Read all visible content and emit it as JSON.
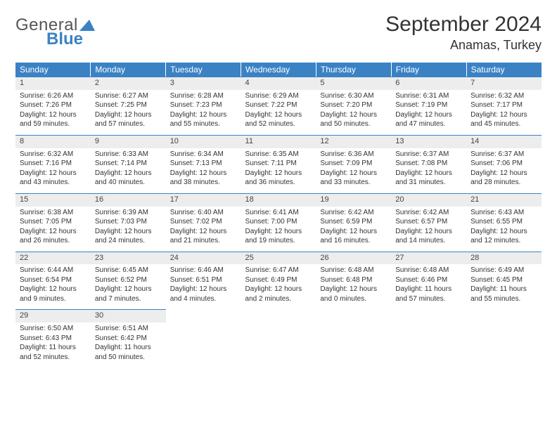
{
  "logo": {
    "line1": "General",
    "line2": "Blue",
    "triangle_color": "#3b82c4"
  },
  "title": "September 2024",
  "location": "Anamas, Turkey",
  "colors": {
    "header_bg": "#3b82c4",
    "header_fg": "#ffffff",
    "daynum_bg": "#ededed",
    "day_border": "#3b82c4",
    "text": "#333333",
    "page_bg": "#ffffff"
  },
  "weekdays": [
    "Sunday",
    "Monday",
    "Tuesday",
    "Wednesday",
    "Thursday",
    "Friday",
    "Saturday"
  ],
  "weeks": [
    [
      {
        "n": "1",
        "sunrise": "6:26 AM",
        "sunset": "7:26 PM",
        "dl": "12 hours and 59 minutes."
      },
      {
        "n": "2",
        "sunrise": "6:27 AM",
        "sunset": "7:25 PM",
        "dl": "12 hours and 57 minutes."
      },
      {
        "n": "3",
        "sunrise": "6:28 AM",
        "sunset": "7:23 PM",
        "dl": "12 hours and 55 minutes."
      },
      {
        "n": "4",
        "sunrise": "6:29 AM",
        "sunset": "7:22 PM",
        "dl": "12 hours and 52 minutes."
      },
      {
        "n": "5",
        "sunrise": "6:30 AM",
        "sunset": "7:20 PM",
        "dl": "12 hours and 50 minutes."
      },
      {
        "n": "6",
        "sunrise": "6:31 AM",
        "sunset": "7:19 PM",
        "dl": "12 hours and 47 minutes."
      },
      {
        "n": "7",
        "sunrise": "6:32 AM",
        "sunset": "7:17 PM",
        "dl": "12 hours and 45 minutes."
      }
    ],
    [
      {
        "n": "8",
        "sunrise": "6:32 AM",
        "sunset": "7:16 PM",
        "dl": "12 hours and 43 minutes."
      },
      {
        "n": "9",
        "sunrise": "6:33 AM",
        "sunset": "7:14 PM",
        "dl": "12 hours and 40 minutes."
      },
      {
        "n": "10",
        "sunrise": "6:34 AM",
        "sunset": "7:13 PM",
        "dl": "12 hours and 38 minutes."
      },
      {
        "n": "11",
        "sunrise": "6:35 AM",
        "sunset": "7:11 PM",
        "dl": "12 hours and 36 minutes."
      },
      {
        "n": "12",
        "sunrise": "6:36 AM",
        "sunset": "7:09 PM",
        "dl": "12 hours and 33 minutes."
      },
      {
        "n": "13",
        "sunrise": "6:37 AM",
        "sunset": "7:08 PM",
        "dl": "12 hours and 31 minutes."
      },
      {
        "n": "14",
        "sunrise": "6:37 AM",
        "sunset": "7:06 PM",
        "dl": "12 hours and 28 minutes."
      }
    ],
    [
      {
        "n": "15",
        "sunrise": "6:38 AM",
        "sunset": "7:05 PM",
        "dl": "12 hours and 26 minutes."
      },
      {
        "n": "16",
        "sunrise": "6:39 AM",
        "sunset": "7:03 PM",
        "dl": "12 hours and 24 minutes."
      },
      {
        "n": "17",
        "sunrise": "6:40 AM",
        "sunset": "7:02 PM",
        "dl": "12 hours and 21 minutes."
      },
      {
        "n": "18",
        "sunrise": "6:41 AM",
        "sunset": "7:00 PM",
        "dl": "12 hours and 19 minutes."
      },
      {
        "n": "19",
        "sunrise": "6:42 AM",
        "sunset": "6:59 PM",
        "dl": "12 hours and 16 minutes."
      },
      {
        "n": "20",
        "sunrise": "6:42 AM",
        "sunset": "6:57 PM",
        "dl": "12 hours and 14 minutes."
      },
      {
        "n": "21",
        "sunrise": "6:43 AM",
        "sunset": "6:55 PM",
        "dl": "12 hours and 12 minutes."
      }
    ],
    [
      {
        "n": "22",
        "sunrise": "6:44 AM",
        "sunset": "6:54 PM",
        "dl": "12 hours and 9 minutes."
      },
      {
        "n": "23",
        "sunrise": "6:45 AM",
        "sunset": "6:52 PM",
        "dl": "12 hours and 7 minutes."
      },
      {
        "n": "24",
        "sunrise": "6:46 AM",
        "sunset": "6:51 PM",
        "dl": "12 hours and 4 minutes."
      },
      {
        "n": "25",
        "sunrise": "6:47 AM",
        "sunset": "6:49 PM",
        "dl": "12 hours and 2 minutes."
      },
      {
        "n": "26",
        "sunrise": "6:48 AM",
        "sunset": "6:48 PM",
        "dl": "12 hours and 0 minutes."
      },
      {
        "n": "27",
        "sunrise": "6:48 AM",
        "sunset": "6:46 PM",
        "dl": "11 hours and 57 minutes."
      },
      {
        "n": "28",
        "sunrise": "6:49 AM",
        "sunset": "6:45 PM",
        "dl": "11 hours and 55 minutes."
      }
    ],
    [
      {
        "n": "29",
        "sunrise": "6:50 AM",
        "sunset": "6:43 PM",
        "dl": "11 hours and 52 minutes."
      },
      {
        "n": "30",
        "sunrise": "6:51 AM",
        "sunset": "6:42 PM",
        "dl": "11 hours and 50 minutes."
      },
      null,
      null,
      null,
      null,
      null
    ]
  ],
  "labels": {
    "sunrise": "Sunrise:",
    "sunset": "Sunset:",
    "daylight": "Daylight:"
  }
}
